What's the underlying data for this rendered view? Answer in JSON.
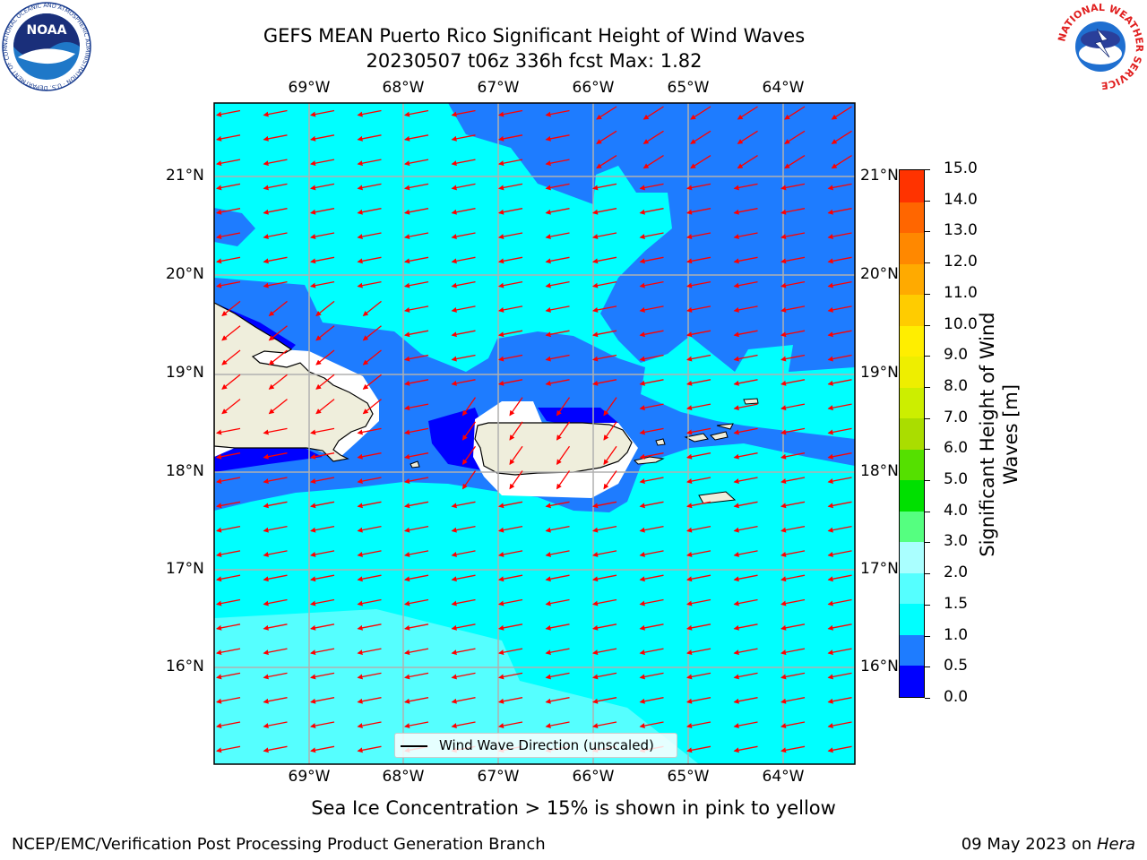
{
  "title": {
    "line1": "GEFS MEAN Puerto Rico Significant Height of Wind Waves",
    "line2": "20230507 t06z 336h fcst   Max: 1.82"
  },
  "map": {
    "lon_labels": [
      "69°W",
      "68°W",
      "67°W",
      "66°W",
      "65°W",
      "64°W"
    ],
    "lat_labels": [
      "21°N",
      "20°N",
      "19°N",
      "18°N",
      "17°N",
      "16°N"
    ],
    "legend_label": "Wind Wave Direction (unscaled)",
    "arrow_color": "#ff0000"
  },
  "colorbar": {
    "title": "Significant Height of Wind Waves [m]",
    "title_line1": "Significant Height of Wind",
    "title_line2": "Waves [m]",
    "ticks": [
      "0.0",
      "0.5",
      "1.0",
      "1.5",
      "2.0",
      "3.0",
      "4.0",
      "5.0",
      "6.0",
      "7.0",
      "8.0",
      "9.0",
      "10.0",
      "11.0",
      "12.0",
      "13.0",
      "14.0",
      "15.0"
    ],
    "colors": [
      "#0000ff",
      "#1e7cff",
      "#00ffff",
      "#55ffff",
      "#aaffff",
      "#55ff80",
      "#00e000",
      "#55e000",
      "#aadd00",
      "#ccee00",
      "#eeee00",
      "#ffee00",
      "#ffcc00",
      "#ffaa00",
      "#ff8800",
      "#ff6600",
      "#ff3300",
      "#ff0000"
    ]
  },
  "note": "Sea Ice Concentration > 15% is shown in pink to yellow",
  "footer": {
    "left": "NCEP/EMC/Verification Post Processing Product Generation Branch",
    "date": "09 May 2023 on ",
    "machine": "Hera"
  },
  "logos": {
    "noaa": "NOAA",
    "noaa_ring": "NATIONAL OCEANIC AND ATMOSPHERIC ADMINISTRATION · U.S. DEPARTMENT OF COMMERCE",
    "nws_ring": "NATIONAL WEATHER SERVICE"
  }
}
